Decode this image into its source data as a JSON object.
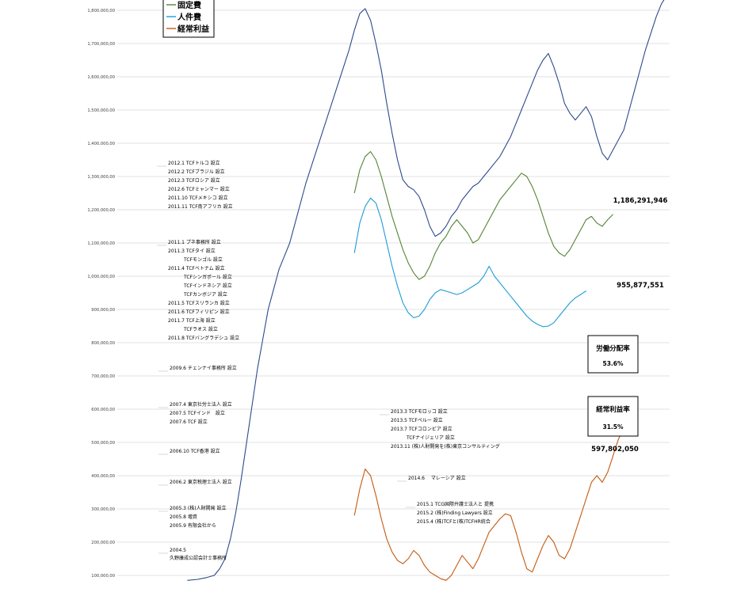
{
  "chart_data": {
    "type": "line",
    "ylim": [
      80000000,
      1850000000
    ],
    "grid": true,
    "legend_position": "top-left",
    "y_ticks": [
      {
        "value": 1800000000,
        "label": "1,800,000,00"
      },
      {
        "value": 1700000000,
        "label": "1,700,000,00"
      },
      {
        "value": 1600000000,
        "label": "1,600,000,00"
      },
      {
        "value": 1500000000,
        "label": "1,500,000,00"
      },
      {
        "value": 1400000000,
        "label": "1,400,000,00"
      },
      {
        "value": 1300000000,
        "label": "1,300,000,00"
      },
      {
        "value": 1200000000,
        "label": "1,200,000,00"
      },
      {
        "value": 1100000000,
        "label": "1,100,000,00"
      },
      {
        "value": 1000000000,
        "label": "1,000,000,00"
      },
      {
        "value": 900000000,
        "label": "900,000,00"
      },
      {
        "value": 800000000,
        "label": "800,000,00"
      },
      {
        "value": 700000000,
        "label": "700,000,00"
      },
      {
        "value": 600000000,
        "label": "600,000,00"
      },
      {
        "value": 500000000,
        "label": "500,000,00"
      },
      {
        "value": 400000000,
        "label": "400,000,00"
      },
      {
        "value": 300000000,
        "label": "300,000,00"
      },
      {
        "value": 200000000,
        "label": "200,000,00"
      },
      {
        "value": 100000000,
        "label": "100,000,00"
      }
    ],
    "series": [
      {
        "name": "",
        "color": "#2e4a8c",
        "points": [
          [
            0.26,
            85000000
          ],
          [
            0.3,
            88000000
          ],
          [
            0.31,
            90000000
          ],
          [
            0.33,
            93000000
          ],
          [
            0.36,
            100000000
          ],
          [
            0.38,
            120000000
          ],
          [
            0.4,
            150000000
          ],
          [
            0.42,
            210000000
          ],
          [
            0.44,
            290000000
          ],
          [
            0.46,
            390000000
          ],
          [
            0.48,
            500000000
          ],
          [
            0.5,
            610000000
          ],
          [
            0.52,
            720000000
          ],
          [
            0.54,
            810000000
          ],
          [
            0.56,
            900000000
          ],
          [
            0.58,
            960000000
          ],
          [
            0.6,
            1020000000
          ],
          [
            0.62,
            1060000000
          ],
          [
            0.64,
            1100000000
          ],
          [
            0.66,
            1160000000
          ],
          [
            0.68,
            1220000000
          ],
          [
            0.7,
            1280000000
          ],
          [
            0.72,
            1330000000
          ],
          [
            0.74,
            1380000000
          ],
          [
            0.76,
            1430000000
          ],
          [
            0.78,
            1480000000
          ],
          [
            0.8,
            1530000000
          ],
          [
            0.82,
            1580000000
          ],
          [
            0.84,
            1630000000
          ],
          [
            0.86,
            1680000000
          ],
          [
            0.88,
            1740000000
          ],
          [
            0.9,
            1790000000
          ],
          [
            0.92,
            1805000000
          ],
          [
            0.94,
            1770000000
          ],
          [
            0.96,
            1700000000
          ],
          [
            0.98,
            1620000000
          ],
          [
            1.0,
            1520000000
          ],
          [
            1.02,
            1430000000
          ],
          [
            1.04,
            1350000000
          ],
          [
            1.06,
            1290000000
          ],
          [
            1.08,
            1270000000
          ],
          [
            1.1,
            1260000000
          ],
          [
            1.12,
            1240000000
          ],
          [
            1.14,
            1200000000
          ],
          [
            1.16,
            1150000000
          ],
          [
            1.18,
            1120000000
          ],
          [
            1.2,
            1130000000
          ],
          [
            1.22,
            1150000000
          ],
          [
            1.24,
            1180000000
          ],
          [
            1.26,
            1200000000
          ],
          [
            1.28,
            1230000000
          ],
          [
            1.3,
            1250000000
          ],
          [
            1.32,
            1270000000
          ],
          [
            1.34,
            1280000000
          ],
          [
            1.36,
            1300000000
          ],
          [
            1.38,
            1320000000
          ],
          [
            1.4,
            1340000000
          ],
          [
            1.42,
            1360000000
          ],
          [
            1.44,
            1390000000
          ],
          [
            1.46,
            1420000000
          ],
          [
            1.48,
            1460000000
          ],
          [
            1.5,
            1500000000
          ],
          [
            1.52,
            1540000000
          ],
          [
            1.54,
            1580000000
          ],
          [
            1.56,
            1620000000
          ],
          [
            1.58,
            1650000000
          ],
          [
            1.6,
            1670000000
          ],
          [
            1.62,
            1630000000
          ],
          [
            1.64,
            1580000000
          ],
          [
            1.66,
            1520000000
          ],
          [
            1.68,
            1490000000
          ],
          [
            1.7,
            1470000000
          ],
          [
            1.72,
            1490000000
          ],
          [
            1.74,
            1510000000
          ],
          [
            1.76,
            1480000000
          ],
          [
            1.78,
            1420000000
          ],
          [
            1.8,
            1370000000
          ],
          [
            1.82,
            1350000000
          ],
          [
            1.84,
            1380000000
          ],
          [
            1.86,
            1410000000
          ],
          [
            1.88,
            1440000000
          ],
          [
            1.9,
            1500000000
          ],
          [
            1.92,
            1560000000
          ],
          [
            1.94,
            1620000000
          ],
          [
            1.96,
            1680000000
          ],
          [
            1.98,
            1730000000
          ],
          [
            2.0,
            1780000000
          ],
          [
            2.02,
            1820000000
          ],
          [
            2.04,
            1845000000
          ]
        ]
      },
      {
        "name": "固定費",
        "color": "#548235",
        "points": [
          [
            0.88,
            1250000000
          ],
          [
            0.9,
            1320000000
          ],
          [
            0.92,
            1360000000
          ],
          [
            0.94,
            1375000000
          ],
          [
            0.96,
            1350000000
          ],
          [
            0.98,
            1300000000
          ],
          [
            1.0,
            1240000000
          ],
          [
            1.02,
            1180000000
          ],
          [
            1.04,
            1130000000
          ],
          [
            1.06,
            1080000000
          ],
          [
            1.08,
            1040000000
          ],
          [
            1.1,
            1010000000
          ],
          [
            1.12,
            990000000
          ],
          [
            1.14,
            1000000000
          ],
          [
            1.16,
            1030000000
          ],
          [
            1.18,
            1070000000
          ],
          [
            1.2,
            1100000000
          ],
          [
            1.22,
            1120000000
          ],
          [
            1.24,
            1150000000
          ],
          [
            1.26,
            1170000000
          ],
          [
            1.28,
            1150000000
          ],
          [
            1.3,
            1130000000
          ],
          [
            1.32,
            1100000000
          ],
          [
            1.34,
            1110000000
          ],
          [
            1.36,
            1140000000
          ],
          [
            1.38,
            1170000000
          ],
          [
            1.4,
            1200000000
          ],
          [
            1.42,
            1230000000
          ],
          [
            1.44,
            1250000000
          ],
          [
            1.46,
            1270000000
          ],
          [
            1.48,
            1290000000
          ],
          [
            1.5,
            1310000000
          ],
          [
            1.52,
            1300000000
          ],
          [
            1.54,
            1270000000
          ],
          [
            1.56,
            1230000000
          ],
          [
            1.58,
            1180000000
          ],
          [
            1.6,
            1130000000
          ],
          [
            1.62,
            1090000000
          ],
          [
            1.64,
            1070000000
          ],
          [
            1.66,
            1060000000
          ],
          [
            1.68,
            1080000000
          ],
          [
            1.7,
            1110000000
          ],
          [
            1.72,
            1140000000
          ],
          [
            1.74,
            1170000000
          ],
          [
            1.76,
            1180000000
          ],
          [
            1.78,
            1160000000
          ],
          [
            1.8,
            1150000000
          ],
          [
            1.82,
            1170000000
          ],
          [
            1.84,
            1186000000
          ]
        ]
      },
      {
        "name": "人件費",
        "color": "#1e9bd7",
        "points": [
          [
            0.88,
            1070000000
          ],
          [
            0.9,
            1160000000
          ],
          [
            0.92,
            1210000000
          ],
          [
            0.94,
            1235000000
          ],
          [
            0.96,
            1220000000
          ],
          [
            0.98,
            1170000000
          ],
          [
            1.0,
            1100000000
          ],
          [
            1.02,
            1030000000
          ],
          [
            1.04,
            970000000
          ],
          [
            1.06,
            920000000
          ],
          [
            1.08,
            890000000
          ],
          [
            1.1,
            875000000
          ],
          [
            1.12,
            880000000
          ],
          [
            1.14,
            900000000
          ],
          [
            1.16,
            930000000
          ],
          [
            1.18,
            950000000
          ],
          [
            1.2,
            960000000
          ],
          [
            1.22,
            955000000
          ],
          [
            1.24,
            950000000
          ],
          [
            1.26,
            945000000
          ],
          [
            1.28,
            950000000
          ],
          [
            1.3,
            960000000
          ],
          [
            1.32,
            970000000
          ],
          [
            1.34,
            980000000
          ],
          [
            1.36,
            1000000000
          ],
          [
            1.38,
            1030000000
          ],
          [
            1.4,
            1000000000
          ],
          [
            1.42,
            980000000
          ],
          [
            1.44,
            960000000
          ],
          [
            1.46,
            940000000
          ],
          [
            1.48,
            920000000
          ],
          [
            1.5,
            900000000
          ],
          [
            1.52,
            880000000
          ],
          [
            1.54,
            865000000
          ],
          [
            1.56,
            855000000
          ],
          [
            1.58,
            848000000
          ],
          [
            1.6,
            850000000
          ],
          [
            1.62,
            860000000
          ],
          [
            1.64,
            880000000
          ],
          [
            1.66,
            900000000
          ],
          [
            1.68,
            920000000
          ],
          [
            1.7,
            935000000
          ],
          [
            1.72,
            945000000
          ],
          [
            1.74,
            956000000
          ]
        ]
      },
      {
        "name": "経常利益",
        "color": "#c55a11",
        "points": [
          [
            0.88,
            280000000
          ],
          [
            0.9,
            360000000
          ],
          [
            0.92,
            420000000
          ],
          [
            0.94,
            400000000
          ],
          [
            0.96,
            340000000
          ],
          [
            0.98,
            270000000
          ],
          [
            1.0,
            210000000
          ],
          [
            1.02,
            170000000
          ],
          [
            1.04,
            145000000
          ],
          [
            1.06,
            135000000
          ],
          [
            1.08,
            150000000
          ],
          [
            1.1,
            175000000
          ],
          [
            1.12,
            160000000
          ],
          [
            1.14,
            130000000
          ],
          [
            1.16,
            110000000
          ],
          [
            1.18,
            100000000
          ],
          [
            1.2,
            90000000
          ],
          [
            1.22,
            85000000
          ],
          [
            1.24,
            100000000
          ],
          [
            1.26,
            130000000
          ],
          [
            1.28,
            160000000
          ],
          [
            1.3,
            140000000
          ],
          [
            1.32,
            120000000
          ],
          [
            1.34,
            150000000
          ],
          [
            1.36,
            190000000
          ],
          [
            1.38,
            230000000
          ],
          [
            1.4,
            250000000
          ],
          [
            1.42,
            270000000
          ],
          [
            1.44,
            285000000
          ],
          [
            1.46,
            280000000
          ],
          [
            1.48,
            230000000
          ],
          [
            1.5,
            170000000
          ],
          [
            1.52,
            120000000
          ],
          [
            1.54,
            110000000
          ],
          [
            1.56,
            150000000
          ],
          [
            1.58,
            190000000
          ],
          [
            1.6,
            220000000
          ],
          [
            1.62,
            200000000
          ],
          [
            1.64,
            160000000
          ],
          [
            1.66,
            150000000
          ],
          [
            1.68,
            180000000
          ],
          [
            1.7,
            230000000
          ],
          [
            1.72,
            280000000
          ],
          [
            1.74,
            330000000
          ],
          [
            1.76,
            380000000
          ],
          [
            1.78,
            400000000
          ],
          [
            1.8,
            380000000
          ],
          [
            1.82,
            410000000
          ],
          [
            1.84,
            460000000
          ],
          [
            1.86,
            510000000
          ],
          [
            1.88,
            540000000
          ],
          [
            1.9,
            598000000
          ]
        ]
      }
    ],
    "value_labels": [
      {
        "text": "1,186,291,946",
        "series": "固定費"
      },
      {
        "text": "955,877,551",
        "series": "人件費"
      },
      {
        "text": "597,802,050",
        "series": "経常利益"
      }
    ],
    "ratio_boxes": [
      {
        "title": "労働分配率",
        "value": "53.6%"
      },
      {
        "title": "経常利益率",
        "value": "31.5%"
      }
    ],
    "annotations": [
      {
        "group": "2011-2012",
        "lines": [
          "2012.1  TCFトルコ 設立",
          "2012.2  TCFブラジル 設立",
          "2012.3  TCFロシア 設立",
          "2012.6  TCFミャンマー 設立",
          "2011.10 TCFメキシコ 設立",
          "2011.11 TCF南アフリカ 設立"
        ]
      },
      {
        "group": "2011",
        "lines": [
          "2011.1  プネ事務所 設立",
          "2011.3  TCFタイ 設立",
          "TCFモンゴル 設立",
          "2011.4  TCFベトナム 設立",
          "TCFシンガポール 設立",
          "TCFインドネシア 設立",
          "TCFカンボジア 設立",
          "2011.5  TCFスリランカ 設立",
          "2011.6  TCFフィリピン 設立",
          "2011.7  TCF上海 設立",
          "TCFラオス 設立",
          "2011.8  TCFバングラデシュ 設立"
        ]
      },
      {
        "group": "2009",
        "lines": [
          "2009.6  チェンナイ事務所 設立"
        ]
      },
      {
        "group": "2007",
        "lines": [
          "2007.4 東京社労士法人 設立",
          "2007.5 TCFインド　設立",
          "2007.6 TCF 設立"
        ]
      },
      {
        "group": "2006a",
        "lines": [
          "2006.10 TCF香港 設立"
        ]
      },
      {
        "group": "2006b",
        "lines": [
          "2006.2 東京税理士法人 設立"
        ]
      },
      {
        "group": "2005",
        "lines": [
          "2005.3 (株)人財開発 設立",
          "2005.8 増資",
          "2005.9 有限会社から"
        ]
      },
      {
        "group": "2004",
        "lines": [
          "2004.5",
          "久野康成公認会計士事務所"
        ]
      },
      {
        "group": "2013",
        "lines": [
          "2013.3   TCFモロッコ 設立",
          "2013.5   TCFペルー 設立",
          "2013.7   TCFコロンビア 設立",
          "TCFナイジェリア 設立",
          "2013.11 (株)人財開発を(株)東京コンサルティング"
        ]
      },
      {
        "group": "2014",
        "lines": [
          "2014.6　 マレーシア 設立"
        ]
      },
      {
        "group": "2015",
        "lines": [
          "2015.1   TCG国際弁護士法人と 提携",
          "2015.2   (株)Finding Lawyers 設立",
          "2015.4   (株)TCFと(株)TCFHR統合"
        ]
      }
    ]
  }
}
